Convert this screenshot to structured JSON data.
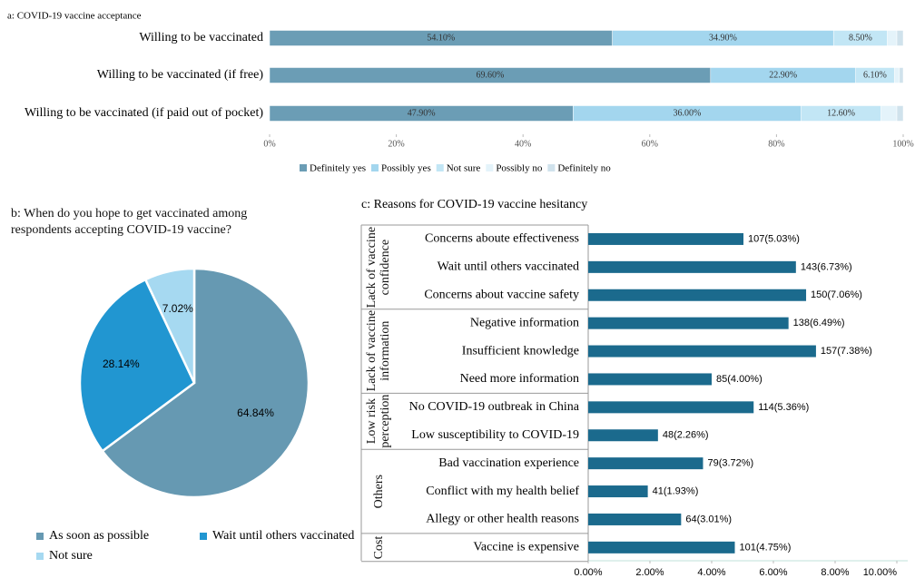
{
  "chart_data": [
    {
      "type": "stacked_bar",
      "title": "a: COVID-19 vaccine acceptance",
      "categories": [
        "Willing to be vaccinated",
        "Willing to be vaccinated (if free)",
        "Willing to be vaccinated (if paid out of pocket)"
      ],
      "series": [
        {
          "name": "Definitely yes",
          "color": "#6b9db5",
          "values": [
            54.1,
            69.6,
            47.9
          ],
          "value_labels": [
            "54.10%",
            "69.60%",
            "47.90%"
          ]
        },
        {
          "name": "Possibly yes",
          "color": "#a3d6ee",
          "values": [
            34.9,
            22.9,
            36.0
          ],
          "value_labels": [
            "34.90%",
            "22.90%",
            "36.00%"
          ]
        },
        {
          "name": "Not sure",
          "color": "#c2e6f5",
          "values": [
            8.5,
            6.1,
            12.6
          ],
          "value_labels": [
            "8.50%",
            "6.10%",
            "12.60%"
          ]
        },
        {
          "name": "Possibly no",
          "color": "#e4f3fa",
          "values": [
            1.5,
            0.8,
            2.5
          ],
          "value_labels": [
            null,
            null,
            null
          ]
        },
        {
          "name": "Definitely no",
          "color": "#d0e2ec",
          "values": [
            1.0,
            0.6,
            1.0
          ],
          "value_labels": [
            null,
            null,
            null
          ]
        }
      ],
      "xlim": [
        0,
        100
      ],
      "xticks": [
        {
          "value": 0,
          "label": "0%"
        },
        {
          "value": 20,
          "label": "20%"
        },
        {
          "value": 40,
          "label": "40%"
        },
        {
          "value": 60,
          "label": "60%"
        },
        {
          "value": 80,
          "label": "80%"
        },
        {
          "value": 100,
          "label": "100%"
        }
      ],
      "legend": "bottom"
    },
    {
      "type": "pie",
      "title": "b: When do you hope to get vaccinated among respondents accepting COVID-19 vaccine?",
      "categories": [
        "As soon as possible",
        "Wait until others vaccinated",
        "Not sure"
      ],
      "values": [
        64.84,
        28.14,
        7.02
      ],
      "value_labels": [
        "64.84%",
        "28.14%",
        "7.02%"
      ],
      "colors": [
        "#6699b2",
        "#2196d1",
        "#a6d9f1"
      ],
      "legend": "bottom"
    },
    {
      "type": "bar",
      "title": "c: Reasons for COVID-19 vaccine hesitancy",
      "color": "#1b6a8d",
      "groups": [
        {
          "name": "Lack of vaccine confidence",
          "categories": [
            "Concerns aboute effectiveness",
            "Wait until others vaccinated",
            "Concerns about vaccine safety"
          ],
          "values": [
            5.03,
            6.73,
            7.06
          ],
          "value_labels": [
            "107(5.03%)",
            "143(6.73%)",
            "150(7.06%)"
          ]
        },
        {
          "name": "Lack of vaccine information",
          "categories": [
            "Negative information",
            "Insufficient knowledge",
            "Need more information"
          ],
          "values": [
            6.49,
            7.38,
            4.0
          ],
          "value_labels": [
            "138(6.49%)",
            "157(7.38%)",
            "85(4.00%)"
          ]
        },
        {
          "name": "Low risk perception",
          "categories": [
            "No COVID-19 outbreak in China",
            "Low susceptibility to COVID-19"
          ],
          "values": [
            5.36,
            2.26
          ],
          "value_labels": [
            "114(5.36%)",
            "48(2.26%)"
          ]
        },
        {
          "name": "Others",
          "categories": [
            "Bad vaccination experience",
            "Conflict with my health belief",
            "Allegy or other health reasons"
          ],
          "values": [
            3.72,
            1.93,
            3.01
          ],
          "value_labels": [
            "79(3.72%)",
            "41(1.93%)",
            "64(3.01%)"
          ]
        },
        {
          "name": "Cost",
          "categories": [
            "Vaccine is expensive"
          ],
          "values": [
            4.75
          ],
          "value_labels": [
            "101(4.75%)"
          ]
        }
      ],
      "xlim": [
        0,
        10
      ],
      "xticks": [
        {
          "value": 0,
          "label": "0.00%"
        },
        {
          "value": 2,
          "label": "2.00%"
        },
        {
          "value": 4,
          "label": "4.00%"
        },
        {
          "value": 6,
          "label": "6.00%"
        },
        {
          "value": 8,
          "label": "8.00%"
        },
        {
          "value": 10,
          "label": "10.00%"
        }
      ]
    }
  ]
}
